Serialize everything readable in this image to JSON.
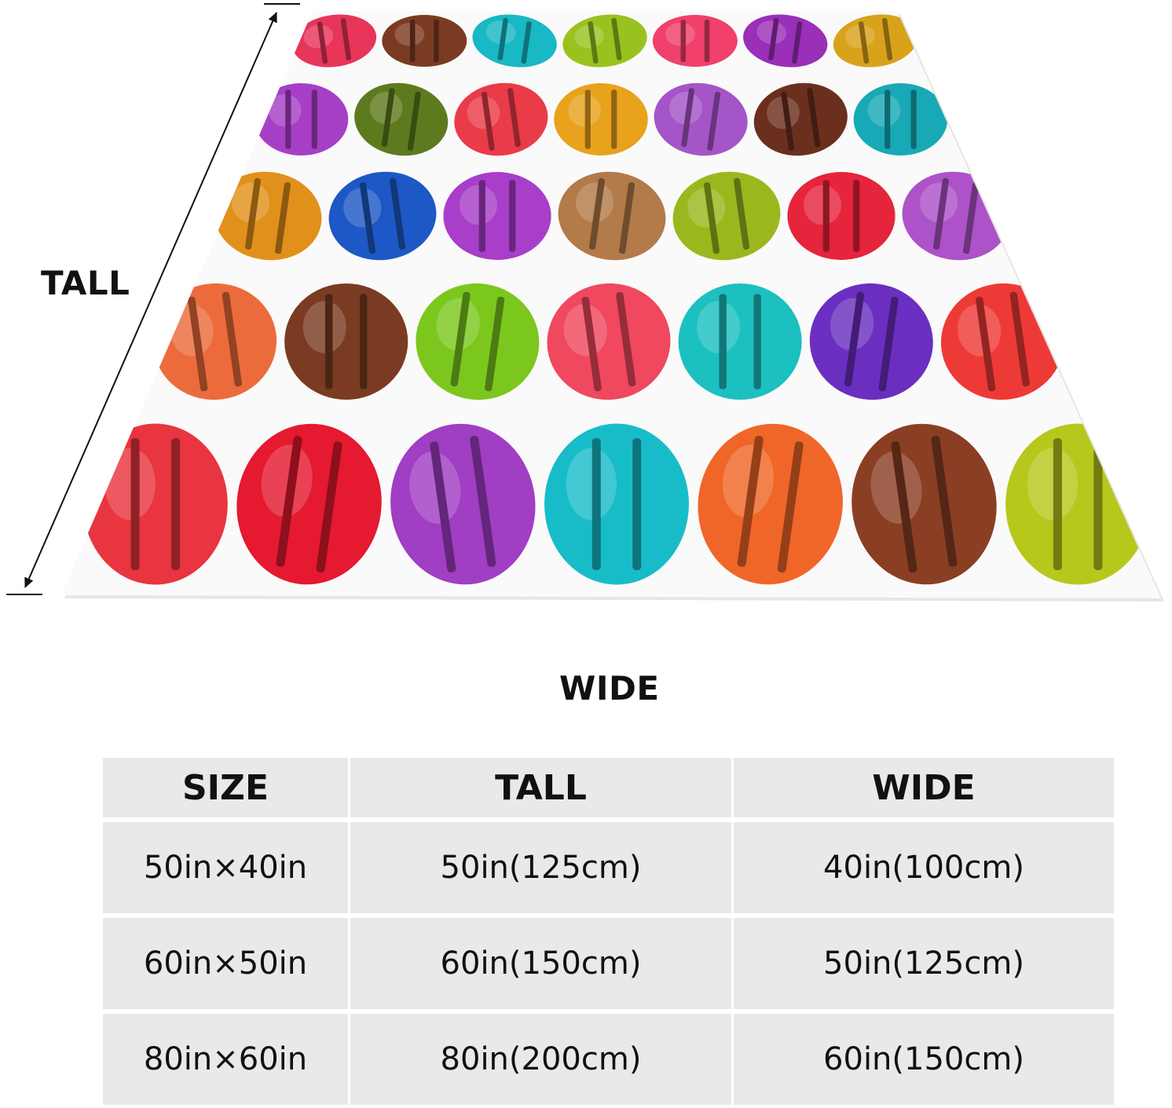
{
  "diagram": {
    "tall_label": "TALL",
    "wide_label": "WIDE",
    "blanket_pattern": "rainbow-macarons",
    "macaron_colors": [
      "#e8355a",
      "#7a3b22",
      "#18b8c4",
      "#9ac21e",
      "#f0406b",
      "#9a2fb8",
      "#d9a21b",
      "#a63fc6",
      "#5e7a1e",
      "#ea3b48",
      "#e8a21c",
      "#a455c8",
      "#6b2f1e",
      "#17a9b5",
      "#e2901c",
      "#1e58c6",
      "#a83ec9",
      "#b37a4a",
      "#9ab81e",
      "#e6243b",
      "#ad52c8",
      "#ec6b3c",
      "#7a3b22",
      "#7cc71e",
      "#f0485e",
      "#1cc0c0",
      "#6a2fc0",
      "#ee3a36",
      "#e8353f",
      "#e5192f",
      "#a03ec4",
      "#18bcc9",
      "#f06628",
      "#8a3f24",
      "#b6c81c"
    ]
  },
  "table": {
    "headers": [
      "SIZE",
      "TALL",
      "WIDE"
    ],
    "rows": [
      [
        "50in×40in",
        "50in(125cm)",
        "40in(100cm)"
      ],
      [
        "60in×50in",
        "60in(150cm)",
        "50in(125cm)"
      ],
      [
        "80in×60in",
        "80in(200cm)",
        "60in(150cm)"
      ]
    ]
  }
}
